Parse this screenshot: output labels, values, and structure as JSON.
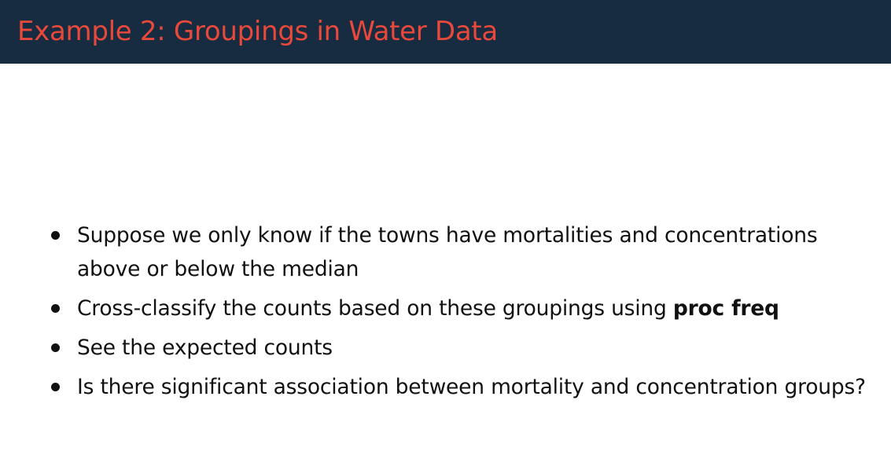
{
  "slide": {
    "title": "Example 2: Groupings in Water Data",
    "colors": {
      "header_bg": "#172b41",
      "title_text": "#e8493a",
      "body_text": "#111111"
    },
    "bullets": [
      {
        "text": "Suppose we only know if the towns have mortalities and concentrations above or below the median"
      },
      {
        "text": "Cross-classify the counts based on these groupings using ",
        "bold": "proc freq"
      },
      {
        "text": "See the expected counts"
      },
      {
        "text": "Is there significant association between mortality and concentration groups?"
      }
    ]
  }
}
